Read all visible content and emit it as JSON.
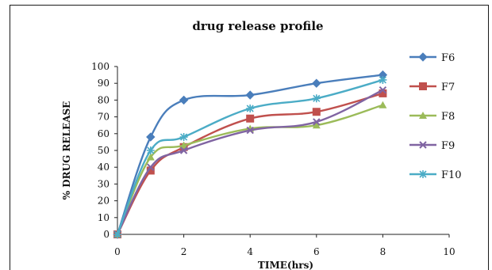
{
  "chart_data": {
    "type": "line",
    "title": "drug release profile",
    "xlabel": "TIME(hrs)",
    "ylabel": "% DRUG RELEASE",
    "xlim": [
      0,
      10
    ],
    "ylim": [
      0,
      100
    ],
    "xticks": [
      0,
      2,
      4,
      6,
      8,
      10
    ],
    "yticks": [
      0,
      10,
      20,
      30,
      40,
      50,
      60,
      70,
      80,
      90,
      100
    ],
    "grid": false,
    "legend_position": "right",
    "x": [
      0,
      1,
      2,
      4,
      6,
      8
    ],
    "series": [
      {
        "name": "F6",
        "color": "#4a7ebb",
        "marker": "diamond",
        "values": [
          0,
          58,
          80,
          83,
          90,
          95
        ]
      },
      {
        "name": "F7",
        "color": "#c0504d",
        "marker": "square",
        "values": [
          0,
          38,
          52,
          69,
          73,
          84
        ]
      },
      {
        "name": "F8",
        "color": "#9bbb59",
        "marker": "triangle",
        "values": [
          0,
          46,
          53,
          63,
          65,
          77
        ]
      },
      {
        "name": "F9",
        "color": "#8064a2",
        "marker": "x",
        "values": [
          0,
          40,
          50,
          62,
          67,
          86
        ]
      },
      {
        "name": "F10",
        "color": "#4bacc6",
        "marker": "star",
        "values": [
          0,
          50,
          58,
          75,
          81,
          92
        ]
      }
    ]
  }
}
